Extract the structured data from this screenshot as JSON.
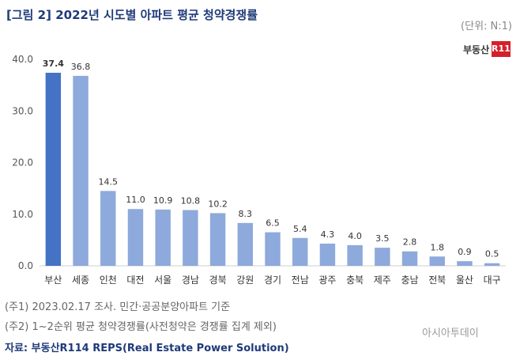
{
  "header": {
    "title": "[그림 2] 2022년 시도별 아파트 평균 청약경쟁률",
    "unit": "(단위: N:1)"
  },
  "logo": {
    "text": "부동산",
    "badge": "R114"
  },
  "chart_data": {
    "type": "bar",
    "categories": [
      "부산",
      "세종",
      "인천",
      "대전",
      "서울",
      "경남",
      "경북",
      "강원",
      "경기",
      "전남",
      "광주",
      "충북",
      "제주",
      "충남",
      "전북",
      "울산",
      "대구"
    ],
    "values": [
      37.4,
      36.8,
      14.5,
      11.0,
      10.9,
      10.8,
      10.2,
      8.3,
      6.5,
      5.4,
      4.3,
      4.0,
      3.5,
      2.8,
      1.8,
      0.9,
      0.5
    ],
    "value_labels": [
      "37.4",
      "36.8",
      "14.5",
      "11.0",
      "10.9",
      "10.8",
      "10.2",
      "8.3",
      "6.5",
      "5.4",
      "4.3",
      "4.0",
      "3.5",
      "2.8",
      "1.8",
      "0.9",
      "0.5"
    ],
    "yticks": [
      "0.0",
      "10.0",
      "20.0",
      "30.0",
      "40.0"
    ],
    "ylim": [
      0,
      40
    ],
    "grid": false,
    "colors": {
      "highlight": "#4472c4",
      "bar": "#8ea9db"
    },
    "highlight_index": 0
  },
  "notes": [
    "(주1) 2023.02.17 조사. 민간·공공분양아파트 기준",
    "(주2) 1~2순위 평균 청약경쟁률(사전청약은 경쟁률 집계 제외)"
  ],
  "source": "자료: 부동산R114 REPS(Real Estate Power Solution)",
  "watermark": "아시아투데이"
}
